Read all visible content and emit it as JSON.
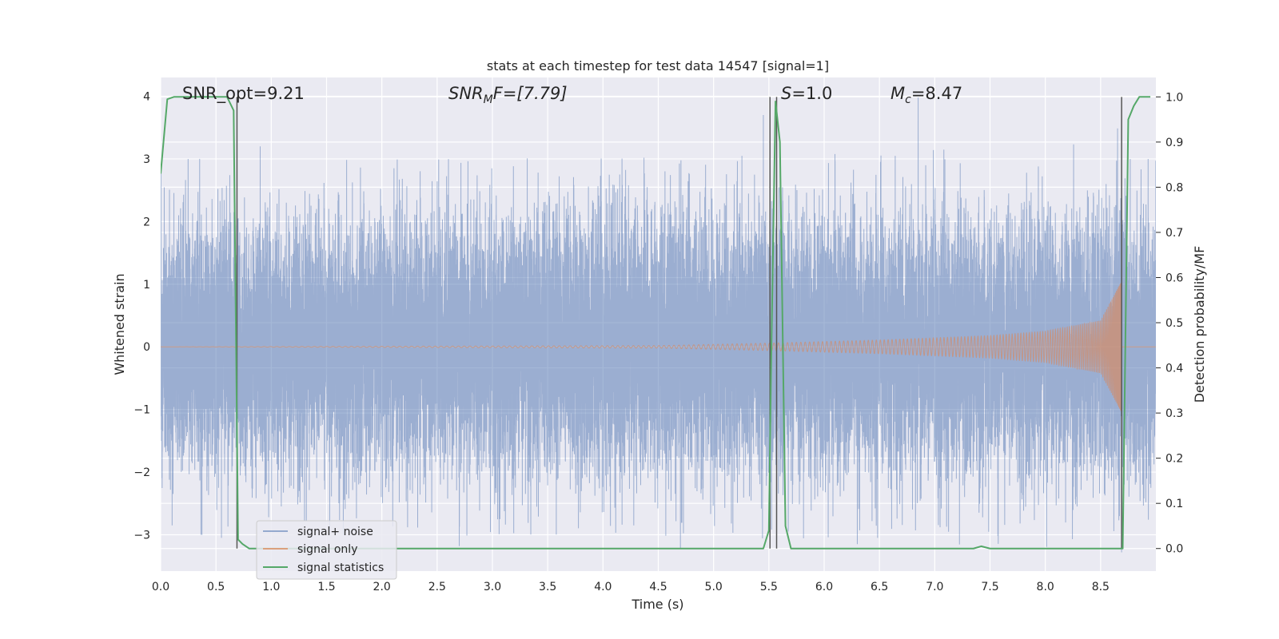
{
  "chart_data": {
    "type": "line",
    "title": "stats at each timestep for test data 14547 [signal=1]",
    "xlabel": "Time (s)",
    "ylabel": "Whitened strain",
    "ylabel_right": "Detection probability/MF",
    "xlim": [
      0.0,
      9.0
    ],
    "ylim": [
      -3.58,
      4.3
    ],
    "ylim_right": [
      -0.05,
      1.043
    ],
    "x_ticks": [
      0.0,
      0.5,
      1.0,
      1.5,
      2.0,
      2.5,
      3.0,
      3.5,
      4.0,
      4.5,
      5.0,
      5.5,
      6.0,
      6.5,
      7.0,
      7.5,
      8.0,
      8.5
    ],
    "x_tick_labels": [
      "0.0",
      "0.5",
      "1.0",
      "1.5",
      "2.0",
      "2.5",
      "3.0",
      "3.5",
      "4.0",
      "4.5",
      "5.0",
      "5.5",
      "6.0",
      "6.5",
      "7.0",
      "7.5",
      "8.0",
      "8.5"
    ],
    "y_ticks": [
      -3,
      -2,
      -1,
      0,
      1,
      2,
      3,
      4
    ],
    "y_tick_labels": [
      "−3",
      "−2",
      "−1",
      "0",
      "1",
      "2",
      "3",
      "4"
    ],
    "y_ticks_right": [
      0.0,
      0.1,
      0.2,
      0.3,
      0.4,
      0.5,
      0.6,
      0.7,
      0.8,
      0.9,
      1.0
    ],
    "y_tick_labels_right": [
      "0.0",
      "0.1",
      "0.2",
      "0.3",
      "0.4",
      "0.5",
      "0.6",
      "0.7",
      "0.8",
      "0.9",
      "1.0"
    ],
    "grid": true,
    "legend_position": "lower-left",
    "annotations": {
      "snr_opt": "SNR_opt=9.21",
      "snr_mf_sym": "SNR",
      "snr_mf_sub": "M",
      "snr_mf_rest": "F=[7.79]",
      "s_sym": "S",
      "s_rest": "=1.0",
      "mc_sym": "M",
      "mc_sub": "c",
      "mc_rest": "=8.47"
    },
    "vertical_lines_x": [
      0.69,
      5.51,
      5.57,
      8.69
    ],
    "series": [
      {
        "name": "signal+ noise",
        "color": "#4c72b0",
        "sampling_rate_hz": 2048,
        "noise_std": 1.0,
        "extremes": [
          {
            "x": 0.55,
            "y": -3.05
          },
          {
            "x": 0.9,
            "y": 3.2
          },
          {
            "x": 2.7,
            "y": -3.18
          },
          {
            "x": 4.7,
            "y": -3.22
          },
          {
            "x": 5.45,
            "y": 3.7
          },
          {
            "x": 6.3,
            "y": -3.15
          },
          {
            "x": 6.85,
            "y": 3.98
          },
          {
            "x": 8.55,
            "y": 2.6
          }
        ]
      },
      {
        "name": "signal only",
        "color": "#dd8452",
        "merger_time": 8.7,
        "peak_amplitude": 1.05,
        "amplitude_at_x": [
          {
            "x": 4.5,
            "y": 0.02
          },
          {
            "x": 5.5,
            "y": 0.06
          },
          {
            "x": 6.5,
            "y": 0.11
          },
          {
            "x": 7.5,
            "y": 0.18
          },
          {
            "x": 8.0,
            "y": 0.25
          },
          {
            "x": 8.5,
            "y": 0.42
          },
          {
            "x": 8.69,
            "y": 1.05
          }
        ]
      },
      {
        "name": "signal statistics",
        "color": "#55a868",
        "axis": "right",
        "points": [
          {
            "x": 0.0,
            "y": 0.83
          },
          {
            "x": 0.06,
            "y": 0.995
          },
          {
            "x": 0.12,
            "y": 1.0
          },
          {
            "x": 0.6,
            "y": 1.0
          },
          {
            "x": 0.66,
            "y": 0.97
          },
          {
            "x": 0.7,
            "y": 0.02
          },
          {
            "x": 0.74,
            "y": 0.01
          },
          {
            "x": 0.8,
            "y": 0.0
          },
          {
            "x": 5.45,
            "y": 0.0
          },
          {
            "x": 5.5,
            "y": 0.04
          },
          {
            "x": 5.52,
            "y": 0.4
          },
          {
            "x": 5.56,
            "y": 0.99
          },
          {
            "x": 5.6,
            "y": 0.9
          },
          {
            "x": 5.65,
            "y": 0.05
          },
          {
            "x": 5.7,
            "y": 0.0
          },
          {
            "x": 7.35,
            "y": 0.0
          },
          {
            "x": 7.42,
            "y": 0.005
          },
          {
            "x": 7.5,
            "y": 0.0
          },
          {
            "x": 8.3,
            "y": 0.0
          },
          {
            "x": 8.7,
            "y": 0.0
          },
          {
            "x": 8.75,
            "y": 0.95
          },
          {
            "x": 8.8,
            "y": 0.98
          },
          {
            "x": 8.85,
            "y": 1.0
          },
          {
            "x": 8.95,
            "y": 1.0
          }
        ]
      }
    ]
  }
}
